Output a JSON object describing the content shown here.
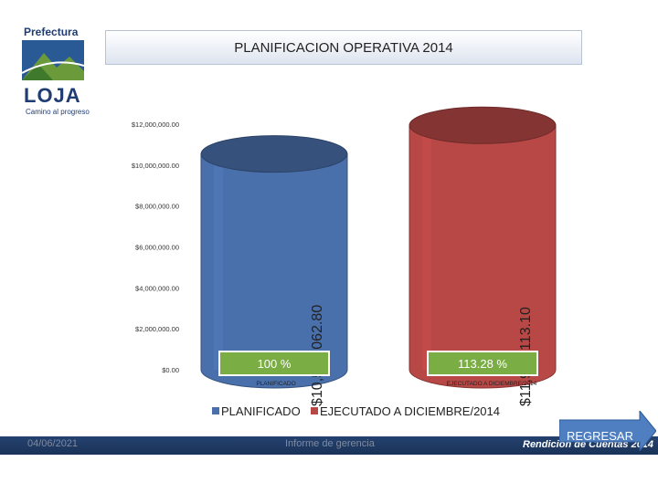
{
  "logo": {
    "top": "Prefectura",
    "main": "LOJA",
    "sub": "Camino al progreso"
  },
  "title": "PLANIFICACION OPERATIVA 2014",
  "chart_data": {
    "type": "bar",
    "style": "3d-cylinder",
    "categories": [
      "PLANIFICADO",
      "EJECUTADO A DICIEMBRE/2014"
    ],
    "series": [
      {
        "name": "PLANIFICADO",
        "values": [
          10543062.8,
          null
        ],
        "color": "#4a70ac",
        "value_label": "$10,543,062.80",
        "percent_label": "100 %"
      },
      {
        "name": "EJECUTADO A DICIEMBRE/2014",
        "values": [
          null,
          11943113.1
        ],
        "color": "#b84846",
        "value_label": "$11,943,113.10",
        "percent_label": "113.28 %"
      }
    ],
    "yticks": [
      "$12,000,000.00",
      "$10,000,000.00",
      "$8,000,000.00",
      "$6,000,000.00",
      "$4,000,000.00",
      "$2,000,000.00",
      "$0.00"
    ],
    "ylim": [
      0,
      12000000
    ],
    "legend": "bottom",
    "percent_badge_color": "#7aae45"
  },
  "footer": {
    "date": "04/06/2021",
    "center": "Informe de gerencia",
    "right": "Rendición de Cuentas 2014"
  },
  "regresar": {
    "label": "REGRESAR",
    "color": "#4f7fc0"
  }
}
